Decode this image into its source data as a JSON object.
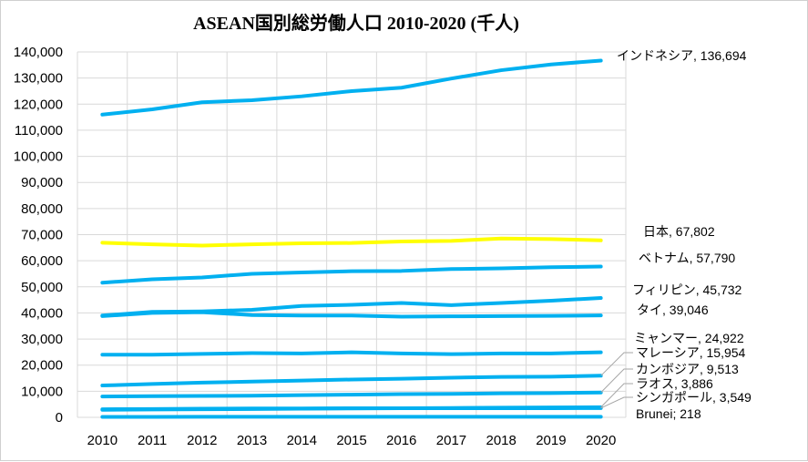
{
  "chart_data": {
    "type": "line",
    "title": "ASEAN国別総労働人口  2010-2020 (千人)",
    "categories": [
      "2010",
      "2011",
      "2012",
      "2013",
      "2014",
      "2015",
      "2016",
      "2017",
      "2018",
      "2019",
      "2020"
    ],
    "ylim": [
      0,
      140000
    ],
    "yticks": [
      "0",
      "10,000",
      "20,000",
      "30,000",
      "40,000",
      "50,000",
      "60,000",
      "70,000",
      "80,000",
      "90,000",
      "100,000",
      "110,000",
      "120,000",
      "130,000",
      "140,000"
    ],
    "grid": true,
    "legend": "none",
    "series": [
      {
        "name": "インドネシア",
        "color": "#00b0f0",
        "end_label": "インドネシア, 136,694",
        "values": [
          116000,
          118000,
          120700,
          121500,
          123000,
          125000,
          126300,
          129800,
          133000,
          135200,
          136694
        ]
      },
      {
        "name": "日本",
        "color": "#ffff00",
        "end_label": "日本, 67,802",
        "values": [
          66900,
          66300,
          65800,
          66300,
          66700,
          66800,
          67400,
          67600,
          68500,
          68300,
          67802
        ]
      },
      {
        "name": "ベトナム",
        "color": "#00b0f0",
        "end_label": "ベトナム, 57,790",
        "values": [
          51600,
          52900,
          53600,
          55000,
          55500,
          56000,
          56100,
          56800,
          57100,
          57500,
          57790
        ]
      },
      {
        "name": "フィリピン",
        "color": "#00b0f0",
        "end_label": "フィリピン, 45,732",
        "values": [
          39000,
          40400,
          40600,
          41200,
          42700,
          43100,
          43800,
          43000,
          43800,
          44700,
          45732
        ]
      },
      {
        "name": "タイ",
        "color": "#00b0f0",
        "end_label": "タイ, 39,046",
        "values": [
          38800,
          40000,
          40300,
          39200,
          39000,
          39000,
          38600,
          38700,
          38800,
          38900,
          39046
        ]
      },
      {
        "name": "ミャンマー",
        "color": "#00b0f0",
        "end_label": "ミャンマー, 24,922",
        "values": [
          24000,
          24000,
          24300,
          24600,
          24500,
          24900,
          24500,
          24200,
          24500,
          24500,
          24922
        ]
      },
      {
        "name": "マレーシア",
        "color": "#00b0f0",
        "end_label": "マレーシア, 15,954",
        "values": [
          12200,
          12800,
          13300,
          13700,
          14100,
          14500,
          14800,
          15200,
          15500,
          15600,
          15954
        ]
      },
      {
        "name": "カンボジア",
        "color": "#00b0f0",
        "end_label": "カンボジア, 9,513",
        "values": [
          8000,
          8100,
          8200,
          8300,
          8500,
          8700,
          8900,
          9000,
          9200,
          9300,
          9513
        ]
      },
      {
        "name": "ラオス",
        "color": "#00b0f0",
        "end_label": "ラオス, 3,886",
        "values": [
          2900,
          3000,
          3100,
          3200,
          3300,
          3400,
          3500,
          3600,
          3700,
          3800,
          3886
        ]
      },
      {
        "name": "シンガポール",
        "color": "#00b0f0",
        "end_label": "シンガポール, 3,549",
        "values": [
          3100,
          3200,
          3300,
          3400,
          3400,
          3500,
          3500,
          3500,
          3500,
          3500,
          3549
        ]
      },
      {
        "name": "Brunei",
        "color": "#00b0f0",
        "end_label": "Brunei; 218",
        "values": [
          190,
          195,
          200,
          203,
          205,
          208,
          210,
          212,
          214,
          216,
          218
        ]
      }
    ]
  }
}
